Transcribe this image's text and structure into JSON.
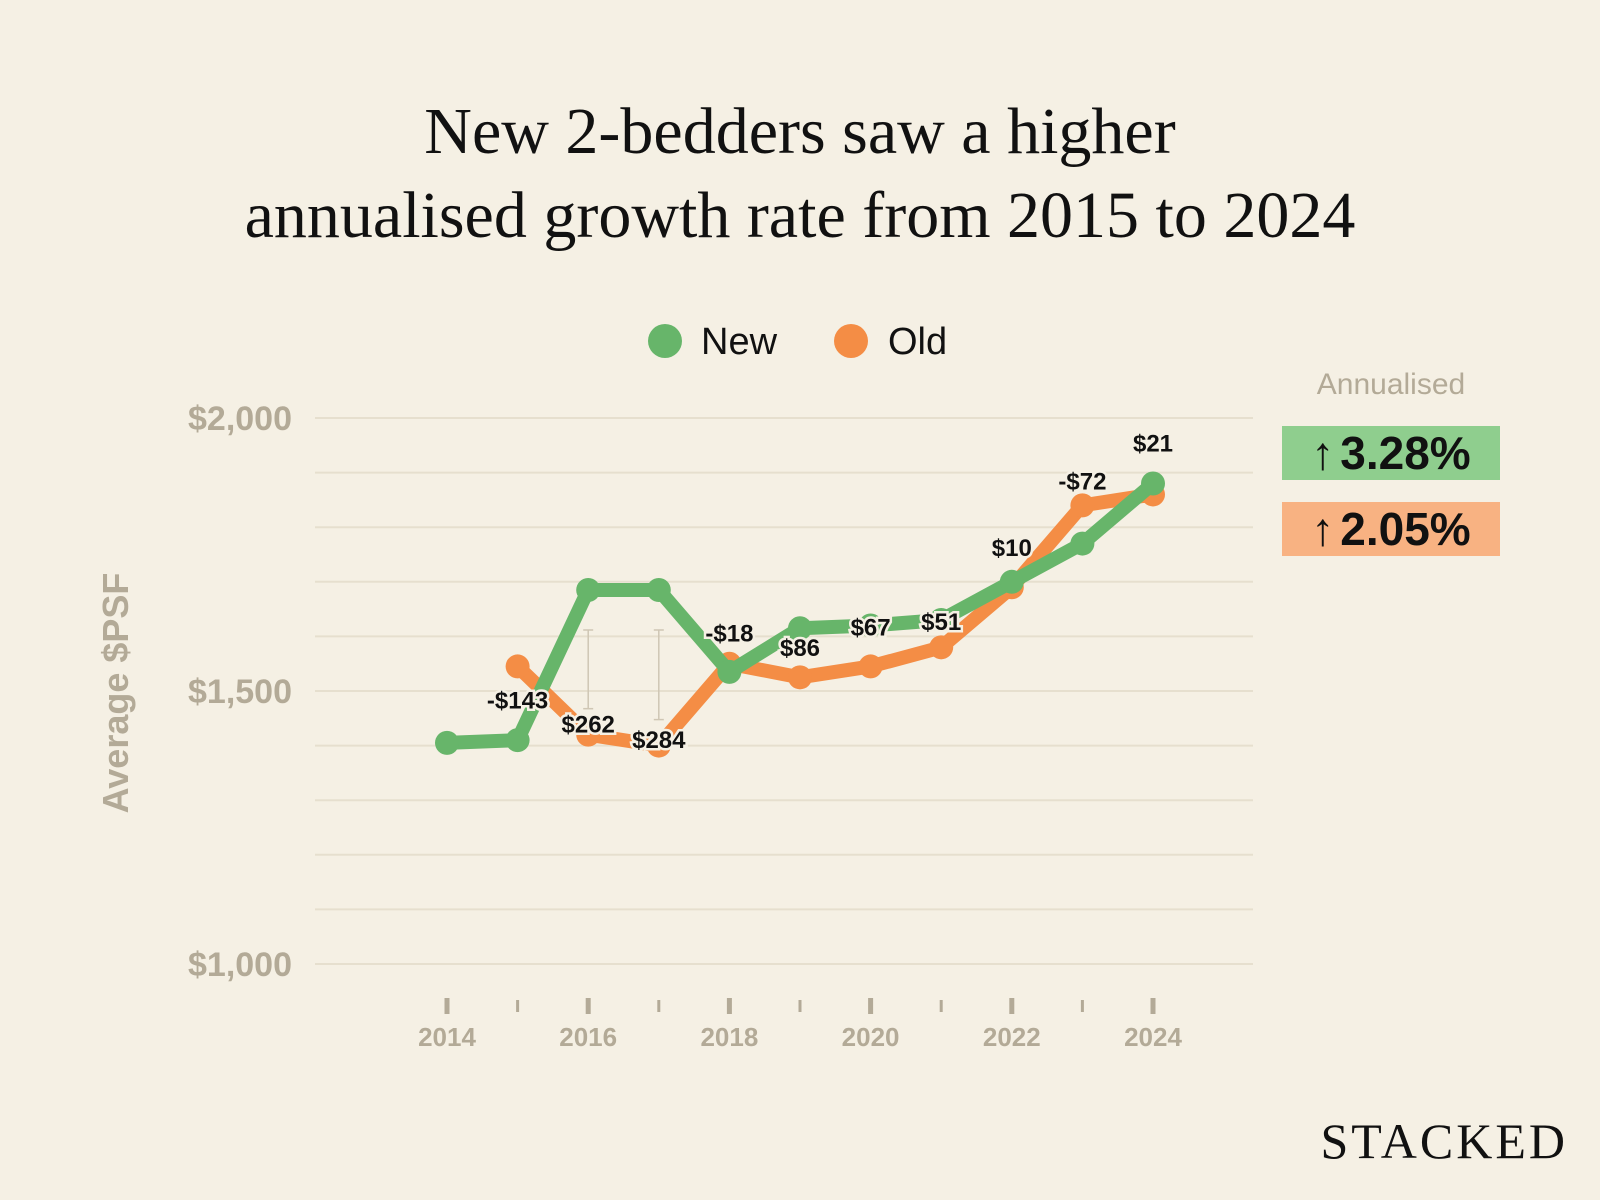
{
  "title_lines": [
    "New 2-bedders saw a higher",
    "annualised growth rate from 2015 to 2024"
  ],
  "badges": {
    "caption": "Annualised",
    "new": {
      "arrow": "↑",
      "value": "3.28%"
    },
    "old": {
      "arrow": "↑",
      "value": "2.05%"
    }
  },
  "brand": "STACKED",
  "colors": {
    "new": "#67b56a",
    "old": "#f48d45",
    "background": "#f5f0e4",
    "axis_text": "#b3aa97",
    "grid": "#e6dfce"
  },
  "chart_data": {
    "type": "line",
    "ylabel": "Average $PSF",
    "xlabel": "",
    "ylim": [
      1000,
      2000
    ],
    "y_ticks": [
      1000,
      1500,
      2000
    ],
    "y_tick_labels": [
      "$1,000",
      "$1,500",
      "$2,000"
    ],
    "x_ticks": [
      2014,
      2016,
      2018,
      2020,
      2022,
      2024
    ],
    "x_tick_labels": [
      "2014",
      "2016",
      "2018",
      "2020",
      "2022",
      "2024"
    ],
    "grid": true,
    "legend": "top-center",
    "series": [
      {
        "name": "New",
        "color": "#67b56a",
        "x": [
          2014,
          2015,
          2016,
          2017,
          2018,
          2019,
          2020,
          2021,
          2022,
          2023,
          2024
        ],
        "values": [
          1405,
          1410,
          1685,
          1685,
          1535,
          1615,
          1620,
          1630,
          1700,
          1770,
          1880
        ]
      },
      {
        "name": "Old",
        "color": "#f48d45",
        "x": [
          2015,
          2016,
          2017,
          2018,
          2019,
          2020,
          2021,
          2022,
          2023,
          2024
        ],
        "values": [
          1545,
          1420,
          1400,
          1550,
          1525,
          1545,
          1580,
          1690,
          1840,
          1860
        ]
      }
    ],
    "difference_labels": [
      {
        "x": 2015,
        "text": "-$143"
      },
      {
        "x": 2016,
        "text": "$262"
      },
      {
        "x": 2017,
        "text": "$284"
      },
      {
        "x": 2018,
        "text": "-$18"
      },
      {
        "x": 2019,
        "text": "$86"
      },
      {
        "x": 2020,
        "text": "$67"
      },
      {
        "x": 2021,
        "text": "$51"
      },
      {
        "x": 2022,
        "text": "$10"
      },
      {
        "x": 2023,
        "text": "-$72"
      },
      {
        "x": 2024,
        "text": "$21"
      }
    ]
  }
}
